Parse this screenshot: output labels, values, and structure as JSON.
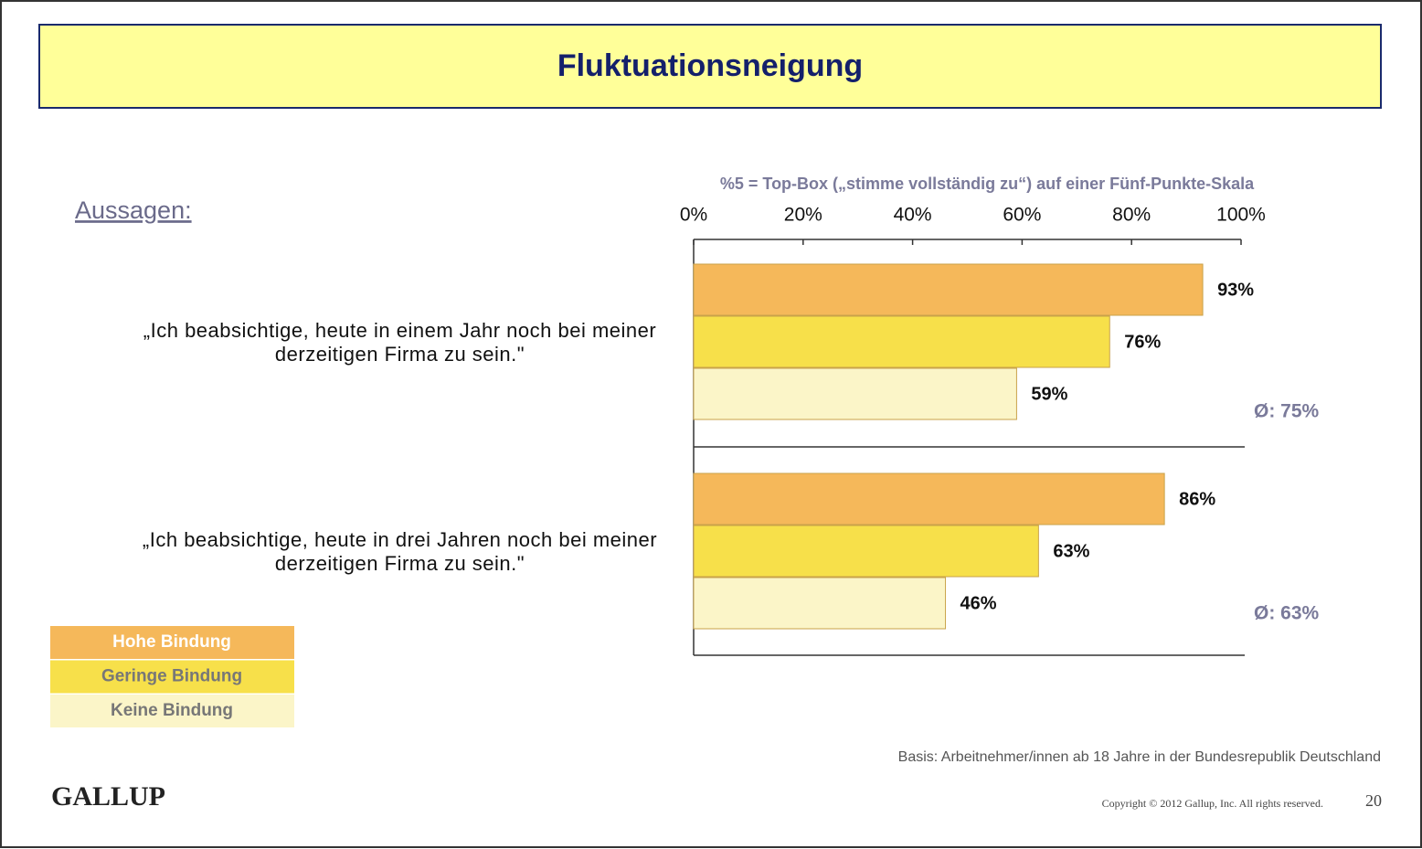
{
  "chart_data": {
    "type": "bar",
    "orientation": "horizontal",
    "title": "Fluktuationsneigung",
    "subtitle": "%5 = Top-Box („stimme vollständig zu“) auf einer Fünf-Punkte-Skala",
    "axis_heading": "Aussagen:",
    "categories": [
      "„Ich beabsichtige, heute in einem Jahr noch bei meiner derzeitigen Firma zu sein.\"",
      "„Ich beabsichtige, heute in drei Jahren noch bei meiner derzeitigen Firma zu sein.\""
    ],
    "series": [
      {
        "name": "Hohe Bindung",
        "color": "#f5b85a",
        "values": [
          93,
          86
        ],
        "value_labels": [
          "93%",
          "86%"
        ]
      },
      {
        "name": "Geringe Bindung",
        "color": "#f7e04a",
        "values": [
          76,
          63
        ],
        "value_labels": [
          "76%",
          "63%"
        ]
      },
      {
        "name": "Keine Bindung",
        "color": "#fbf5c8",
        "values": [
          59,
          46
        ],
        "value_labels": [
          "59%",
          "46%"
        ]
      }
    ],
    "annotations": [
      "Ø: 75%",
      "Ø: 63%"
    ],
    "xlim": [
      0,
      100
    ],
    "xticks": [
      {
        "value": 0,
        "label": "0%"
      },
      {
        "value": 20,
        "label": "20%"
      },
      {
        "value": 40,
        "label": "40%"
      },
      {
        "value": 60,
        "label": "60%"
      },
      {
        "value": 80,
        "label": "80%"
      },
      {
        "value": 100,
        "label": "100%"
      }
    ],
    "legend": "bottom-left",
    "footnote": "Basis: Arbeitnehmer/innen ab 18 Jahre in der Bundesrepublik Deutschland",
    "brand": "GALLUP",
    "copyright": "Copyright © 2012 Gallup, Inc. All rights reserved.",
    "page_number": 20
  }
}
